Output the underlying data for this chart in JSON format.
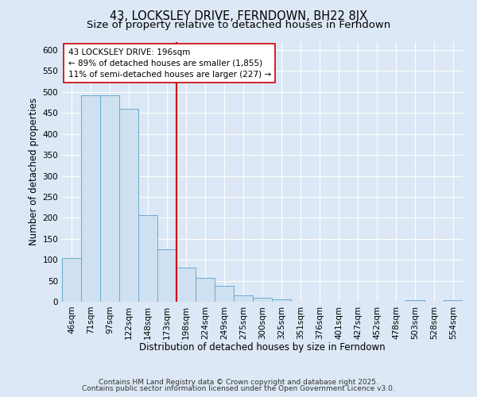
{
  "title": "43, LOCKSLEY DRIVE, FERNDOWN, BH22 8JX",
  "subtitle": "Size of property relative to detached houses in Ferndown",
  "xlabel": "Distribution of detached houses by size in Ferndown",
  "ylabel": "Number of detached properties",
  "bin_labels": [
    "46sqm",
    "71sqm",
    "97sqm",
    "122sqm",
    "148sqm",
    "173sqm",
    "198sqm",
    "224sqm",
    "249sqm",
    "275sqm",
    "300sqm",
    "325sqm",
    "351sqm",
    "376sqm",
    "401sqm",
    "427sqm",
    "452sqm",
    "478sqm",
    "503sqm",
    "528sqm",
    "554sqm"
  ],
  "bar_values": [
    105,
    493,
    493,
    460,
    207,
    125,
    82,
    57,
    37,
    15,
    10,
    5,
    0,
    0,
    0,
    0,
    0,
    0,
    3,
    0,
    4
  ],
  "bar_color": "#cfe0f0",
  "bar_edge_color": "#6aaad4",
  "vline_index": 6,
  "vline_color": "#cc0000",
  "ylim": [
    0,
    620
  ],
  "yticks": [
    0,
    50,
    100,
    150,
    200,
    250,
    300,
    350,
    400,
    450,
    500,
    550,
    600
  ],
  "annotation_title": "43 LOCKSLEY DRIVE: 196sqm",
  "annotation_line1": "← 89% of detached houses are smaller (1,855)",
  "annotation_line2": "11% of semi-detached houses are larger (227) →",
  "annotation_box_facecolor": "#ffffff",
  "annotation_box_edgecolor": "#cc0000",
  "footer_line1": "Contains HM Land Registry data © Crown copyright and database right 2025.",
  "footer_line2": "Contains public sector information licensed under the Open Government Licence v3.0.",
  "background_color": "#dce8f5",
  "plot_background": "#dce8f5",
  "grid_color": "#ffffff",
  "title_fontsize": 10.5,
  "subtitle_fontsize": 9.5,
  "axis_label_fontsize": 8.5,
  "tick_fontsize": 7.5,
  "annotation_fontsize": 7.5,
  "footer_fontsize": 6.5
}
